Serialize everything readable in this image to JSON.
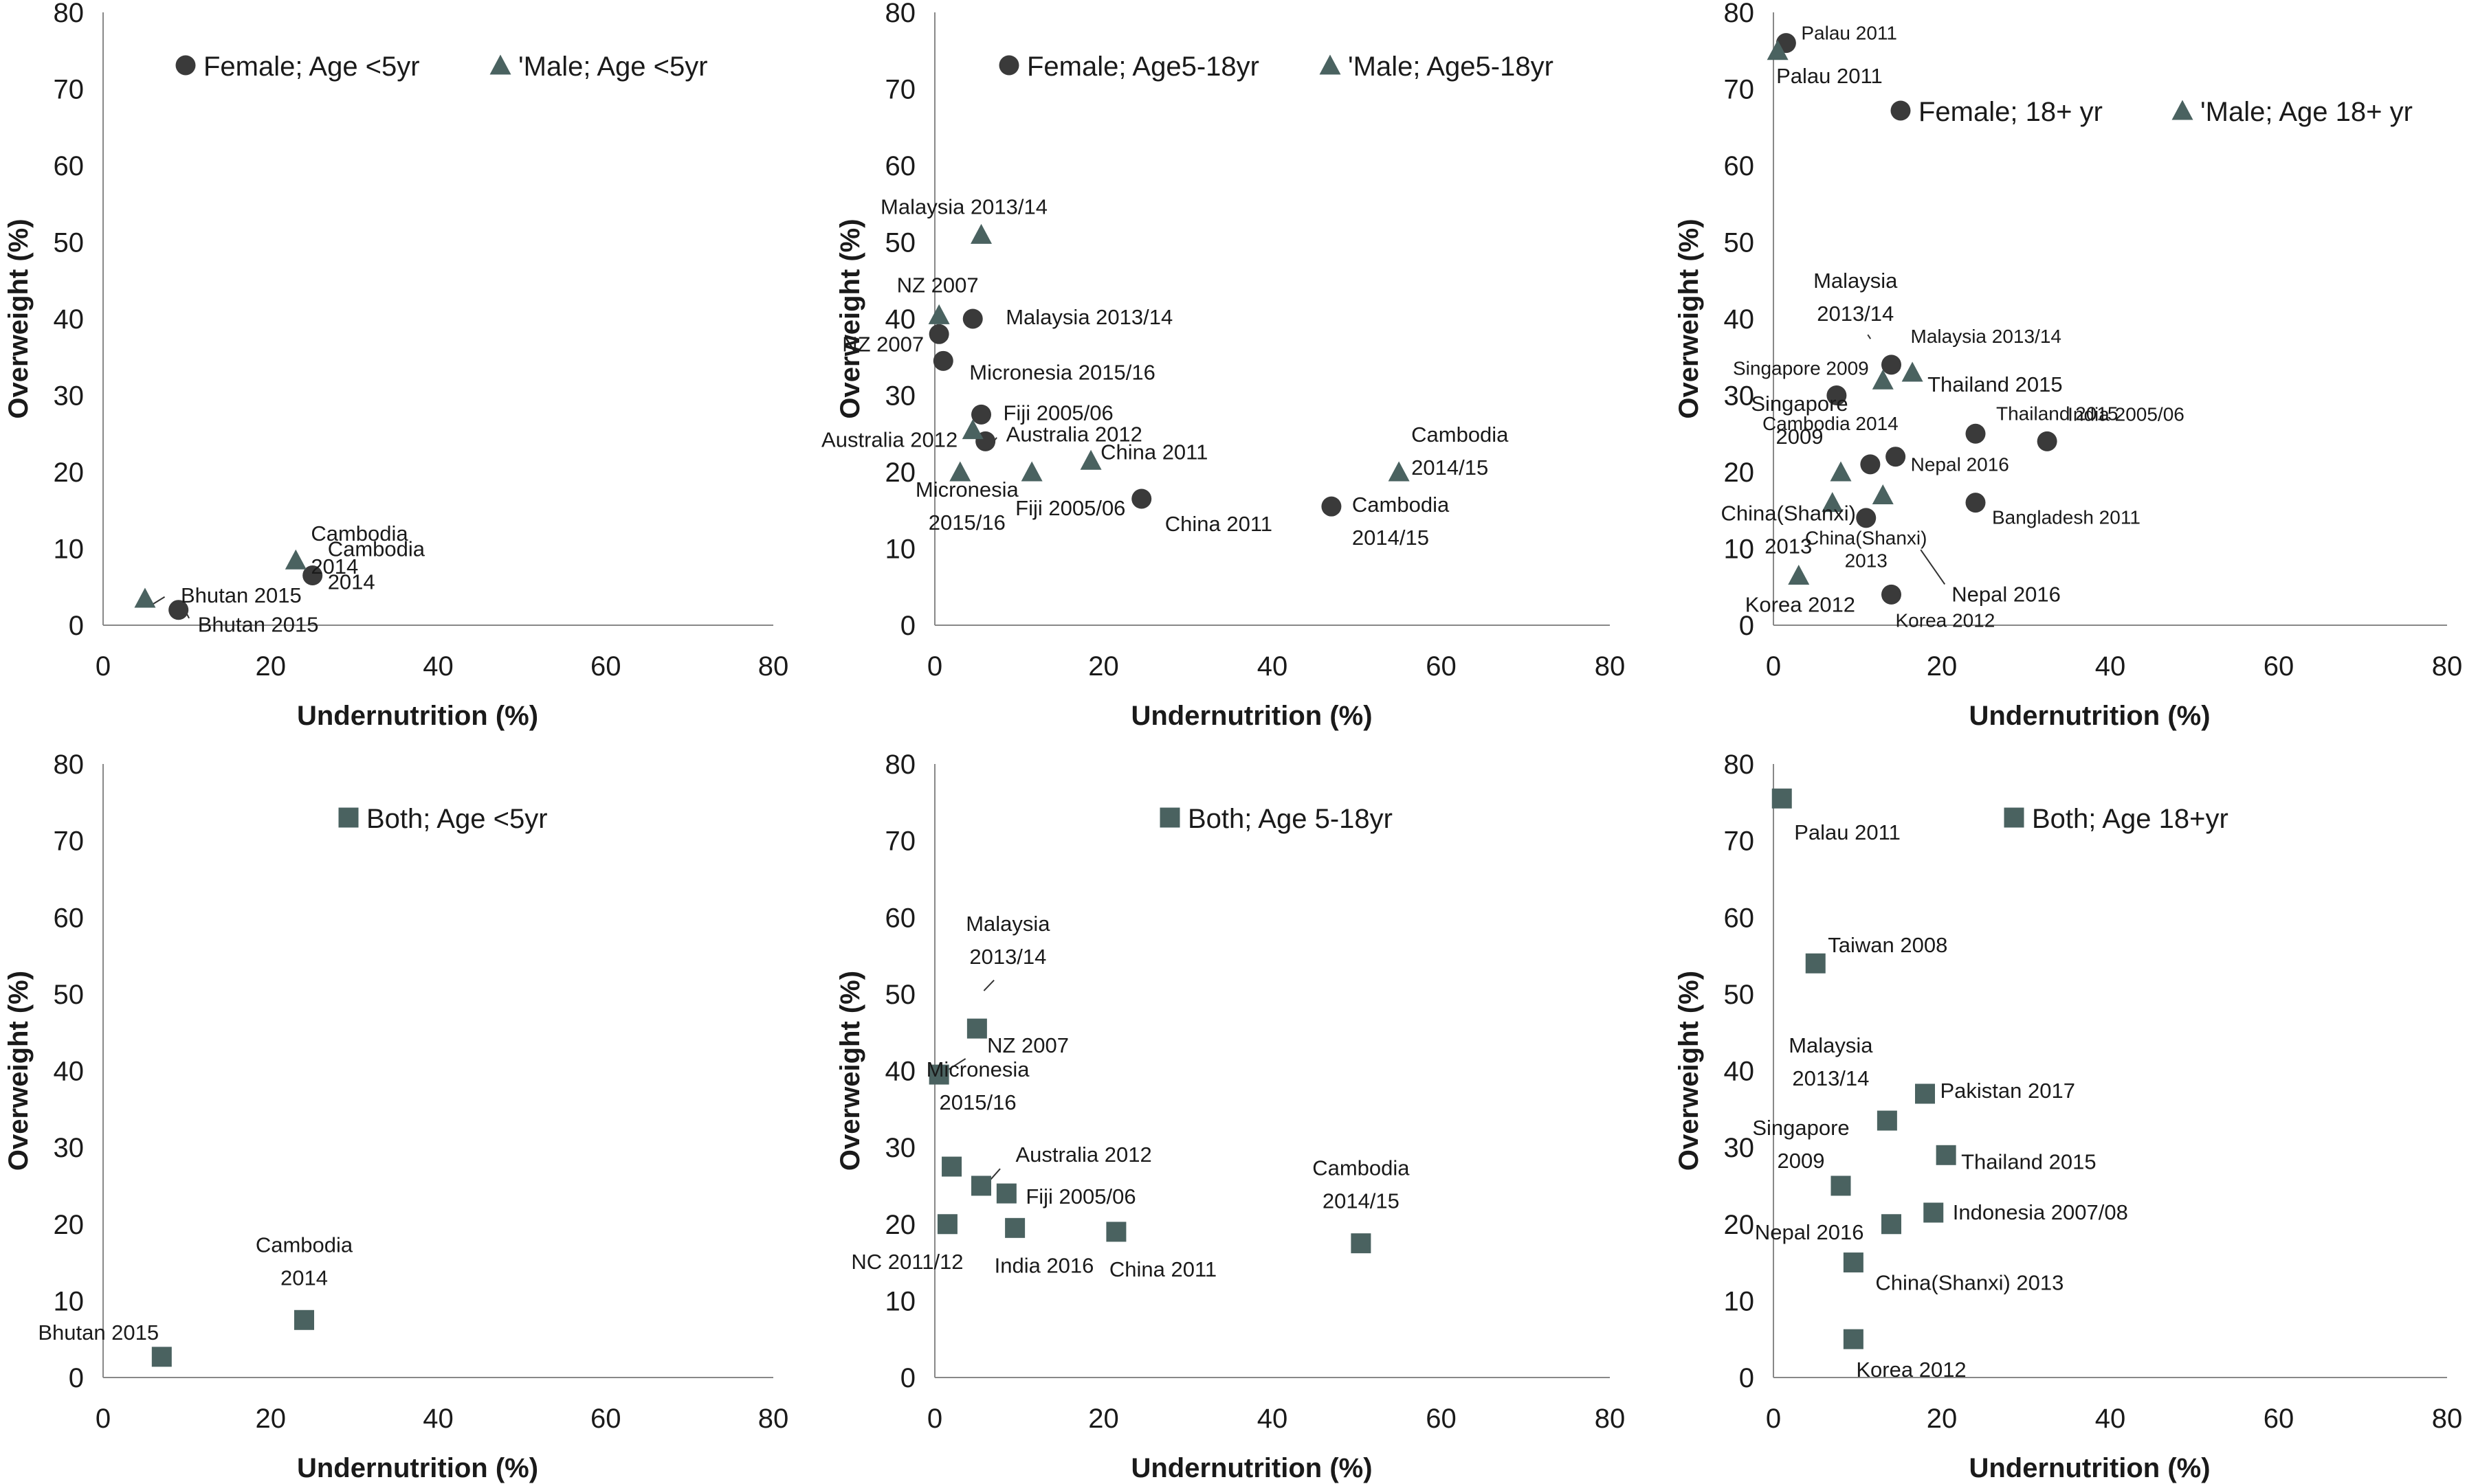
{
  "colors": {
    "female": "#3a3a3a",
    "male": "#4a6260",
    "both": "#4a6260",
    "axis": "#888888",
    "text": "#1a1a1a"
  },
  "chart_data": [
    {
      "type": "scatter",
      "xlabel": "Undernutrition (%)",
      "ylabel": "Overweight (%)",
      "xlim": [
        0,
        80
      ],
      "ylim": [
        0,
        80
      ],
      "xticks": [
        "0",
        "20",
        "40",
        "60",
        "80"
      ],
      "yticks": [
        "0",
        "10",
        "20",
        "30",
        "40",
        "50",
        "60",
        "70",
        "80"
      ],
      "legend": [
        "Female; Age <5yr",
        "'Male; Age <5yr"
      ],
      "series": [
        {
          "name": "Female; Age <5yr",
          "marker": "circle",
          "points": [
            {
              "x": 9,
              "y": 2,
              "label": "Bhutan 2015"
            },
            {
              "x": 25,
              "y": 6.5,
              "label": "Cambodia\n2014"
            }
          ]
        },
        {
          "name": "'Male; Age <5yr",
          "marker": "triangle",
          "points": [
            {
              "x": 5,
              "y": 3.5,
              "label": "Bhutan 2015"
            },
            {
              "x": 23,
              "y": 8.5,
              "label": "Cambodia\n2014"
            }
          ]
        }
      ]
    },
    {
      "type": "scatter",
      "xlabel": "Undernutrition (%)",
      "ylabel": "Overweight (%)",
      "xlim": [
        0,
        80
      ],
      "ylim": [
        0,
        80
      ],
      "xticks": [
        "0",
        "20",
        "40",
        "60",
        "80"
      ],
      "yticks": [
        "0",
        "10",
        "20",
        "30",
        "40",
        "50",
        "60",
        "70",
        "80"
      ],
      "legend": [
        "Female; Age5-18yr",
        "'Male; Age5-18yr"
      ],
      "series": [
        {
          "name": "Female; Age5-18yr",
          "marker": "circle",
          "points": [
            {
              "x": 0.5,
              "y": 38,
              "label": "NZ 2007"
            },
            {
              "x": 4.5,
              "y": 40,
              "label": "Malaysia 2013/14"
            },
            {
              "x": 1,
              "y": 34.5,
              "label": "Micronesia 2015/16"
            },
            {
              "x": 5.5,
              "y": 27.5,
              "label": "Fiji 2005/06"
            },
            {
              "x": 6,
              "y": 24,
              "label": "Australia 2012"
            },
            {
              "x": 24.5,
              "y": 16.5,
              "label": "China 2011"
            },
            {
              "x": 47,
              "y": 15.5,
              "label": "Cambodia\n2014/15"
            }
          ]
        },
        {
          "name": "'Male; Age5-18yr",
          "marker": "triangle",
          "points": [
            {
              "x": 5.5,
              "y": 51,
              "label": "Malaysia 2013/14"
            },
            {
              "x": 0.5,
              "y": 40.5,
              "label": "NZ 2007"
            },
            {
              "x": 4.5,
              "y": 25.5,
              "label": "Australia 2012"
            },
            {
              "x": 3,
              "y": 20,
              "label": "Micronesia\n2015/16"
            },
            {
              "x": 11.5,
              "y": 20,
              "label": "Fiji 2005/06"
            },
            {
              "x": 18.5,
              "y": 21.5,
              "label": "China 2011"
            },
            {
              "x": 55,
              "y": 20,
              "label": "Cambodia\n2014/15"
            }
          ]
        }
      ]
    },
    {
      "type": "scatter",
      "xlabel": "Undernutrition (%)",
      "ylabel": "Overweight (%)",
      "xlim": [
        0,
        80
      ],
      "ylim": [
        0,
        80
      ],
      "xticks": [
        "0",
        "20",
        "40",
        "60",
        "80"
      ],
      "yticks": [
        "0",
        "10",
        "20",
        "30",
        "40",
        "50",
        "60",
        "70",
        "80"
      ],
      "legend": [
        "Female; 18+ yr",
        "'Male; Age 18+ yr"
      ],
      "series": [
        {
          "name": "Female; 18+ yr",
          "marker": "circle",
          "points": [
            {
              "x": 1.5,
              "y": 76,
              "label": "Palau 2011"
            },
            {
              "x": 14,
              "y": 34,
              "label": "Malaysia 2013/14"
            },
            {
              "x": 7.5,
              "y": 30,
              "label": "Singapore 2009"
            },
            {
              "x": 24,
              "y": 25,
              "label": "Thailand 2015"
            },
            {
              "x": 32.5,
              "y": 24,
              "label": "India 2005/06"
            },
            {
              "x": 11.5,
              "y": 21,
              "label": "Cambodia 2014"
            },
            {
              "x": 14.5,
              "y": 22,
              "label": "Nepal 2016"
            },
            {
              "x": 24,
              "y": 16,
              "label": "Bangladesh 2011"
            },
            {
              "x": 11,
              "y": 14,
              "label": "China(Shanxi)\n2013"
            },
            {
              "x": 14,
              "y": 4,
              "label": "Korea 2012"
            }
          ]
        },
        {
          "name": "'Male; Age 18+ yr",
          "marker": "triangle",
          "points": [
            {
              "x": 0.5,
              "y": 75,
              "label": "Palau 2011"
            },
            {
              "x": 13,
              "y": 32,
              "label": "Malaysia\n2013/14"
            },
            {
              "x": 16.5,
              "y": 33,
              "label": "Thailand 2015"
            },
            {
              "x": 8,
              "y": 20,
              "label": "Singapore\n2009"
            },
            {
              "x": 7,
              "y": 16,
              "label": "China(Shanxi)\n2013"
            },
            {
              "x": 13,
              "y": 17,
              "label": "Nepal 2016"
            },
            {
              "x": 3,
              "y": 6.5,
              "label": "Korea 2012"
            }
          ]
        }
      ]
    },
    {
      "type": "scatter",
      "xlabel": "Undernutrition (%)",
      "ylabel": "Overweight (%)",
      "xlim": [
        0,
        80
      ],
      "ylim": [
        0,
        80
      ],
      "xticks": [
        "0",
        "20",
        "40",
        "60",
        "80"
      ],
      "yticks": [
        "0",
        "10",
        "20",
        "30",
        "40",
        "50",
        "60",
        "70",
        "80"
      ],
      "legend": [
        "Both; Age <5yr"
      ],
      "series": [
        {
          "name": "Both; Age <5yr",
          "marker": "square",
          "points": [
            {
              "x": 7,
              "y": 2.7,
              "label": "Bhutan 2015"
            },
            {
              "x": 24,
              "y": 7.5,
              "label": "Cambodia\n2014"
            }
          ]
        }
      ]
    },
    {
      "type": "scatter",
      "xlabel": "Undernutrition (%)",
      "ylabel": "Overweight (%)",
      "xlim": [
        0,
        80
      ],
      "ylim": [
        0,
        80
      ],
      "xticks": [
        "0",
        "20",
        "40",
        "60",
        "80"
      ],
      "yticks": [
        "0",
        "10",
        "20",
        "30",
        "40",
        "50",
        "60",
        "70",
        "80"
      ],
      "legend": [
        "Both; Age 5-18yr"
      ],
      "series": [
        {
          "name": "Both; Age 5-18yr",
          "marker": "square",
          "points": [
            {
              "x": 5,
              "y": 45.5,
              "label": "Malaysia\n2013/14"
            },
            {
              "x": 0.5,
              "y": 39.5,
              "label": "NZ 2007"
            },
            {
              "x": 2,
              "y": 27.5,
              "label": "Micronesia\n2015/16"
            },
            {
              "x": 5.5,
              "y": 25,
              "label": "Australia 2012"
            },
            {
              "x": 8.5,
              "y": 24,
              "label": "Fiji 2005/06"
            },
            {
              "x": 1.5,
              "y": 20,
              "label": "NC 2011/12"
            },
            {
              "x": 9.5,
              "y": 19.5,
              "label": "India 2016"
            },
            {
              "x": 21.5,
              "y": 19,
              "label": "China 2011"
            },
            {
              "x": 50.5,
              "y": 17.5,
              "label": "Cambodia\n2014/15"
            }
          ]
        }
      ]
    },
    {
      "type": "scatter",
      "xlabel": "Undernutrition (%)",
      "ylabel": "Overweight (%)",
      "xlim": [
        0,
        80
      ],
      "ylim": [
        0,
        80
      ],
      "xticks": [
        "0",
        "20",
        "40",
        "60",
        "80"
      ],
      "yticks": [
        "0",
        "10",
        "20",
        "30",
        "40",
        "50",
        "60",
        "70",
        "80"
      ],
      "legend": [
        "Both; Age 18+yr"
      ],
      "series": [
        {
          "name": "Both; Age 18+yr",
          "marker": "square",
          "points": [
            {
              "x": 1,
              "y": 75.5,
              "label": "Palau 2011"
            },
            {
              "x": 5,
              "y": 54,
              "label": "Taiwan 2008"
            },
            {
              "x": 18,
              "y": 37,
              "label": "Pakistan 2017"
            },
            {
              "x": 13.5,
              "y": 33.5,
              "label": "Malaysia\n2013/14"
            },
            {
              "x": 20.5,
              "y": 29,
              "label": "Thailand 2015"
            },
            {
              "x": 8,
              "y": 25,
              "label": "Singapore\n2009"
            },
            {
              "x": 19,
              "y": 21.5,
              "label": "Indonesia 2007/08"
            },
            {
              "x": 14,
              "y": 20,
              "label": "Nepal 2016"
            },
            {
              "x": 9.5,
              "y": 15,
              "label": "China(Shanxi) 2013"
            },
            {
              "x": 9.5,
              "y": 5,
              "label": "Korea 2012"
            }
          ]
        }
      ]
    }
  ]
}
